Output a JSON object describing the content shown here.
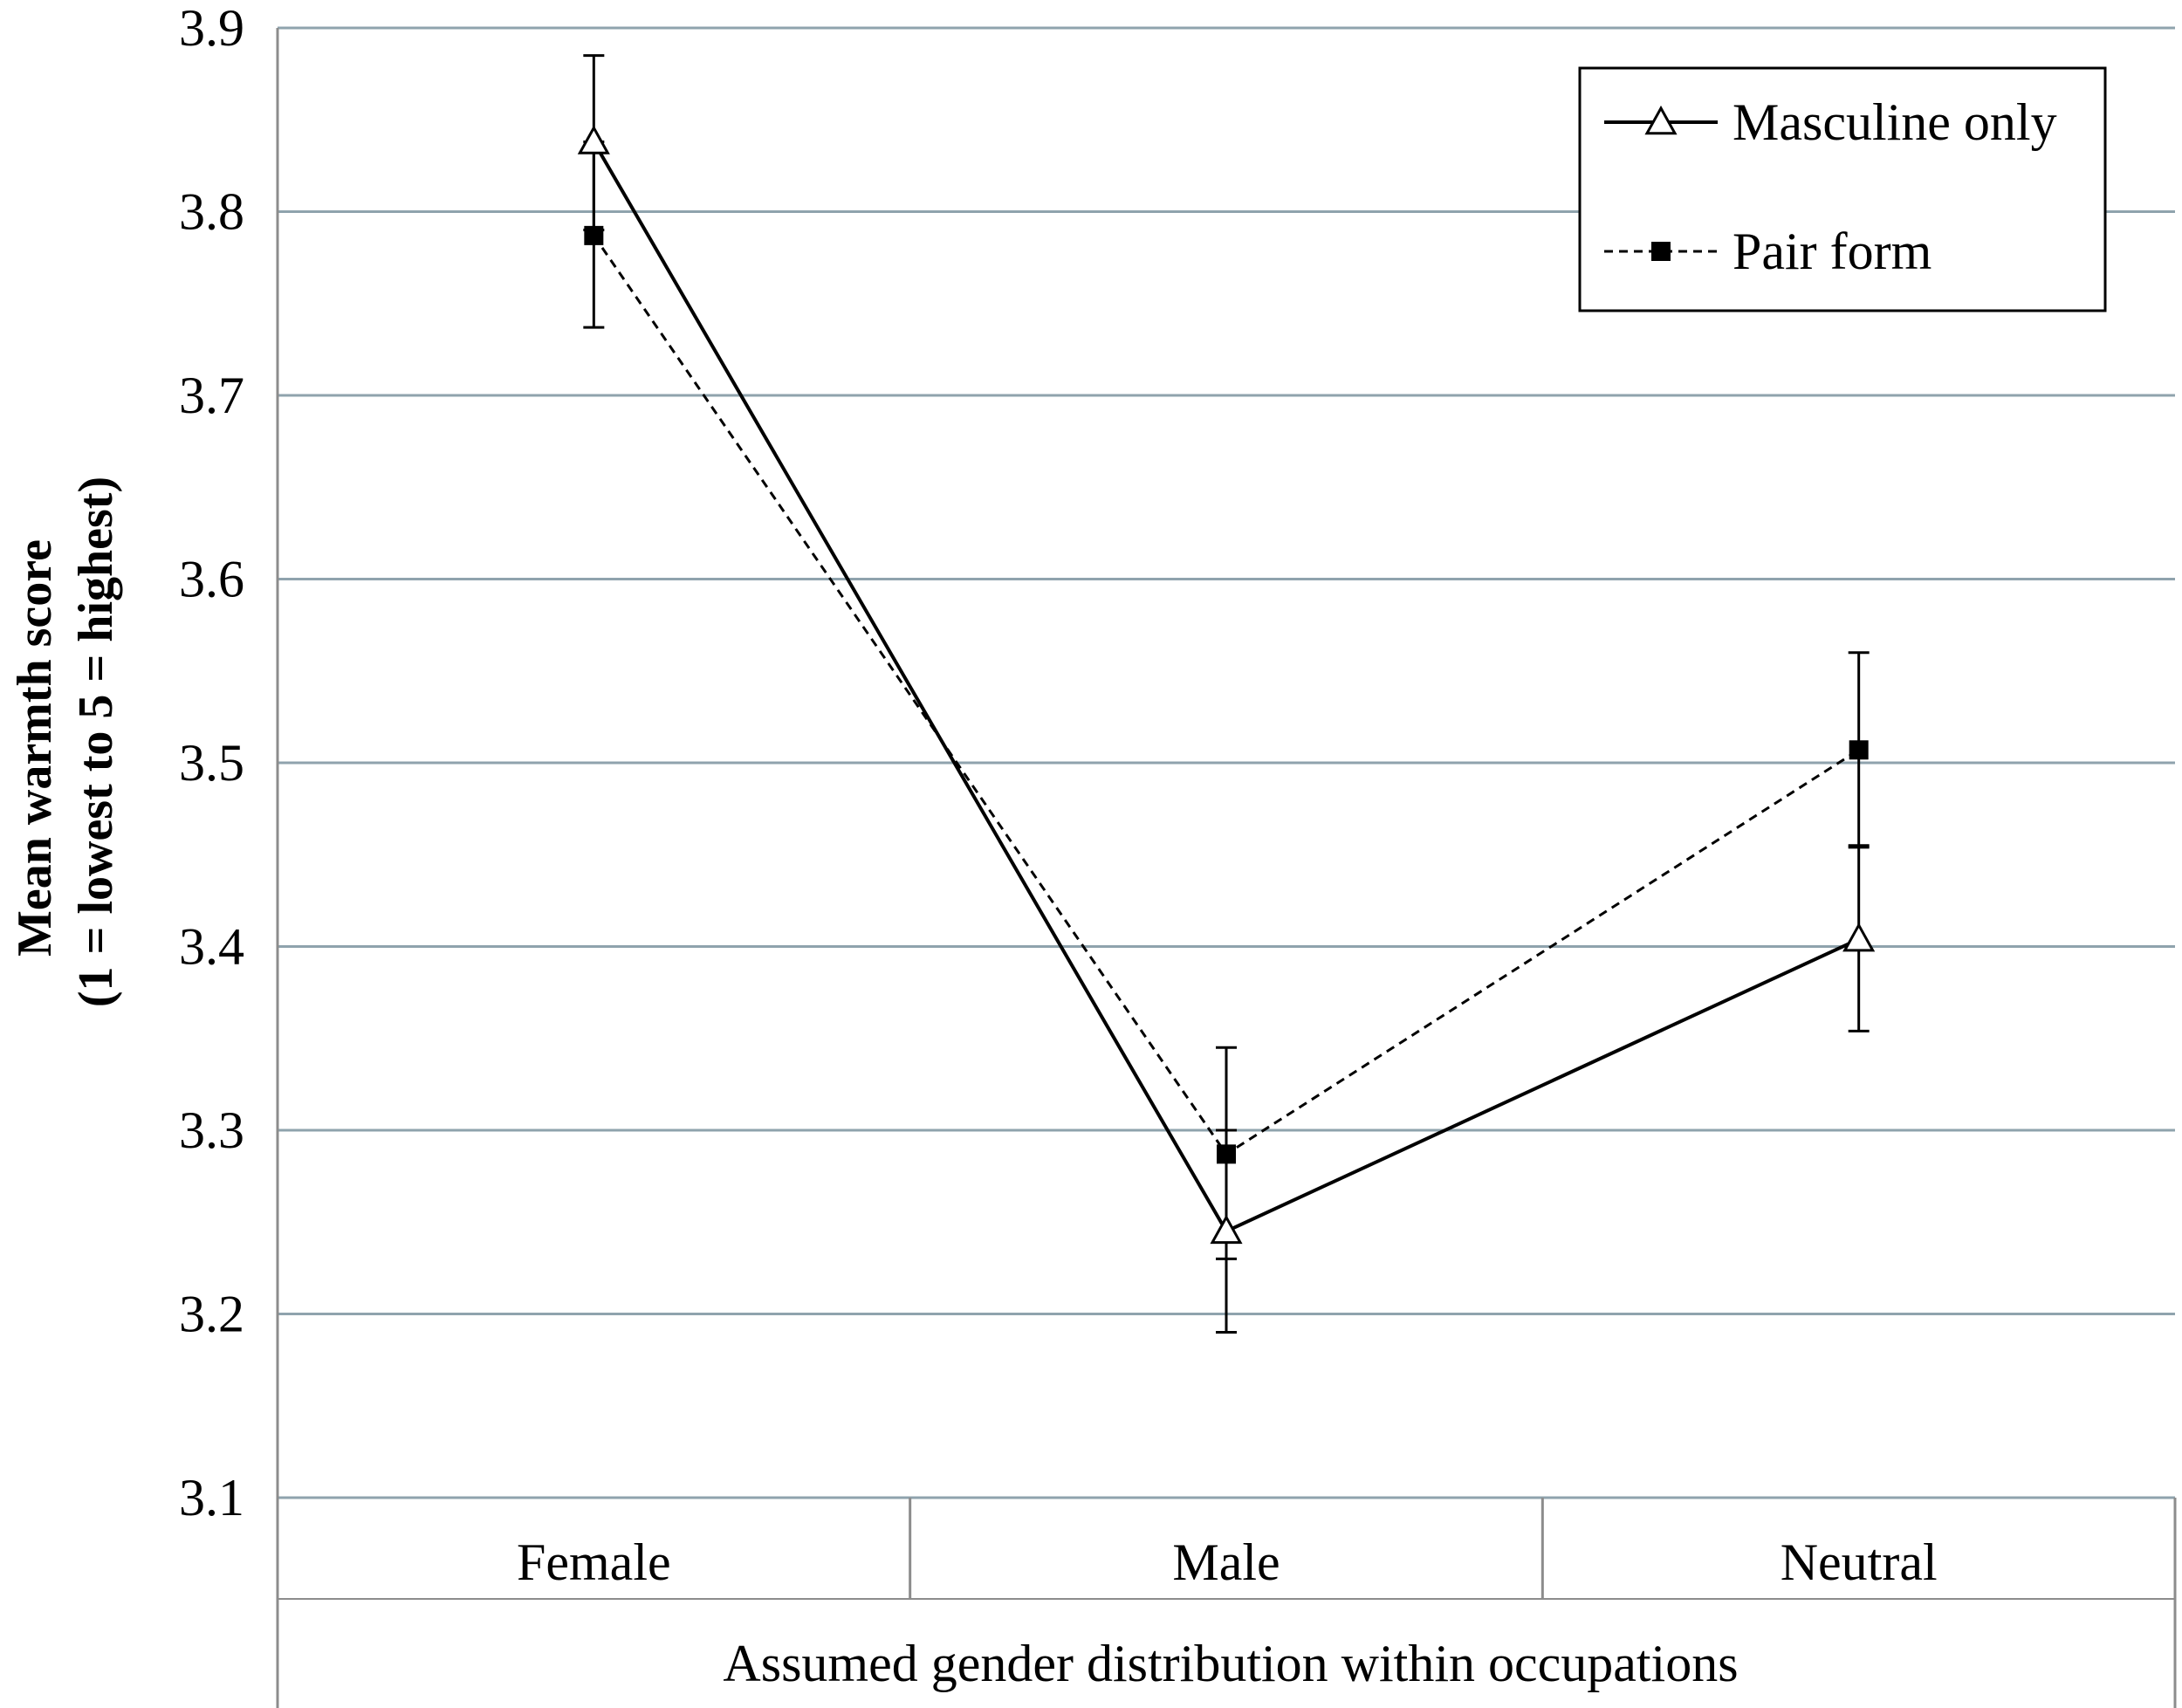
{
  "chart_data": {
    "type": "line",
    "xlabel": "Assumed gender distribution within occupations",
    "ylabel_lines": [
      "Mean warmth score",
      "(1 = lowest to 5 = highest)"
    ],
    "ylim": [
      3.1,
      3.9
    ],
    "yticks": [
      "3.1",
      "3.2",
      "3.3",
      "3.4",
      "3.5",
      "3.6",
      "3.7",
      "3.8",
      "3.9"
    ],
    "grid": true,
    "legend_position": "top-right",
    "categories": [
      "Female",
      "Male",
      "Neutral"
    ],
    "series": [
      {
        "name": "Masculine only",
        "values": [
          3.838,
          3.245,
          3.404
        ],
        "error_low": [
          3.79,
          3.19,
          3.354
        ],
        "error_high": [
          3.885,
          3.3,
          3.454
        ],
        "marker": "triangle-open",
        "line_style": "solid"
      },
      {
        "name": "Pair form",
        "values": [
          3.787,
          3.287,
          3.507
        ],
        "error_low": [
          3.737,
          3.23,
          3.455
        ],
        "error_high": [
          3.838,
          3.345,
          3.56
        ],
        "marker": "square-filled",
        "line_style": "dashed"
      }
    ],
    "colors": {
      "line": "#000000",
      "grid": "#8fa3ad",
      "axis": "#8c8c8c"
    }
  }
}
